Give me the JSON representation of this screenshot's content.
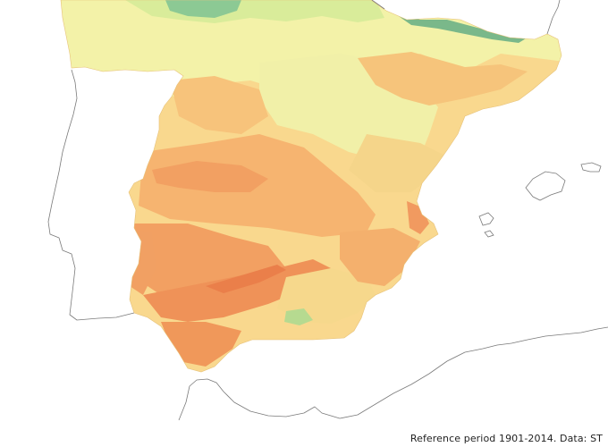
{
  "map": {
    "attribution": "Reference period 1901-2014. Data: ST",
    "colors": {
      "background": "#ffffff",
      "coastline": "#7a7a7a",
      "cool_green": "#6fb87f",
      "pale_green": "#c9e7a0",
      "light_yellow": "#f3f2a8",
      "pale_orange": "#f9d88e",
      "orange": "#f7b871",
      "deep_orange": "#f29c5c",
      "hot_red": "#ee8a55"
    }
  }
}
